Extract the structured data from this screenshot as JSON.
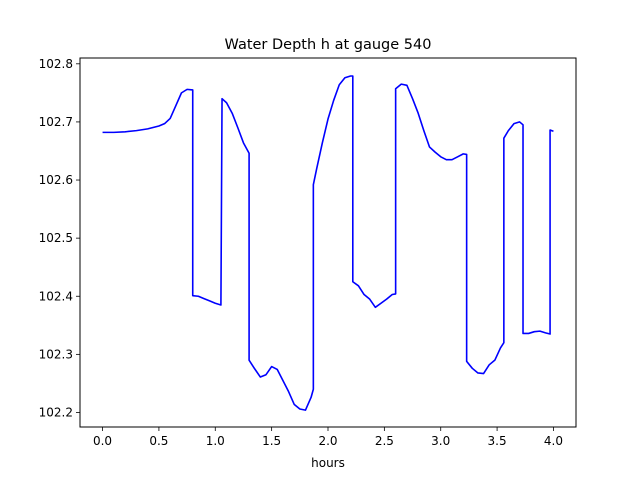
{
  "chart_data": {
    "type": "line",
    "title": "Water Depth h at gauge 540",
    "xlabel": "hours",
    "ylabel": "",
    "xlim": [
      -0.2,
      4.2
    ],
    "ylim": [
      102.175,
      102.81
    ],
    "xticks": [
      0.0,
      0.5,
      1.0,
      1.5,
      2.0,
      2.5,
      3.0,
      3.5,
      4.0
    ],
    "xtick_labels": [
      "0.0",
      "0.5",
      "1.0",
      "1.5",
      "2.0",
      "2.5",
      "3.0",
      "3.5",
      "4.0"
    ],
    "yticks": [
      102.2,
      102.3,
      102.4,
      102.5,
      102.6,
      102.7,
      102.8
    ],
    "ytick_labels": [
      "102.2",
      "102.3",
      "102.4",
      "102.5",
      "102.6",
      "102.7",
      "102.8"
    ],
    "grid": false,
    "legend": "none",
    "series": [
      {
        "color": "#0000ff",
        "x": [
          0.0,
          0.1,
          0.2,
          0.3,
          0.4,
          0.5,
          0.55,
          0.6,
          0.65,
          0.7,
          0.75,
          0.8,
          0.8,
          0.85,
          0.9,
          0.95,
          1.0,
          1.05,
          1.06,
          1.1,
          1.15,
          1.2,
          1.25,
          1.3,
          1.3,
          1.35,
          1.4,
          1.45,
          1.5,
          1.55,
          1.6,
          1.65,
          1.7,
          1.75,
          1.8,
          1.85,
          1.87,
          1.87,
          1.9,
          1.95,
          2.0,
          2.05,
          2.1,
          2.15,
          2.2,
          2.22,
          2.22,
          2.27,
          2.32,
          2.37,
          2.42,
          2.47,
          2.52,
          2.57,
          2.6,
          2.6,
          2.65,
          2.7,
          2.75,
          2.8,
          2.85,
          2.9,
          2.95,
          3.0,
          3.05,
          3.1,
          3.15,
          3.2,
          3.23,
          3.23,
          3.28,
          3.33,
          3.38,
          3.43,
          3.48,
          3.53,
          3.56,
          3.56,
          3.6,
          3.65,
          3.7,
          3.73,
          3.73,
          3.78,
          3.83,
          3.88,
          3.93,
          3.97,
          3.97,
          4.0
        ],
        "y": [
          102.682,
          102.682,
          102.683,
          102.685,
          102.688,
          102.693,
          102.697,
          102.706,
          102.728,
          102.75,
          102.756,
          102.755,
          102.401,
          102.4,
          102.396,
          102.392,
          102.388,
          102.385,
          102.74,
          102.733,
          102.715,
          102.69,
          102.664,
          102.646,
          102.29,
          102.275,
          102.261,
          102.265,
          102.279,
          102.274,
          102.255,
          102.236,
          102.214,
          102.206,
          102.204,
          102.226,
          102.24,
          102.592,
          102.62,
          102.664,
          102.705,
          102.737,
          102.764,
          102.776,
          102.779,
          102.779,
          102.425,
          102.418,
          102.403,
          102.395,
          102.381,
          102.388,
          102.395,
          102.403,
          102.404,
          102.757,
          102.765,
          102.763,
          102.74,
          102.715,
          102.685,
          102.657,
          102.648,
          102.64,
          102.635,
          102.635,
          102.64,
          102.645,
          102.644,
          102.288,
          102.276,
          102.268,
          102.267,
          102.282,
          102.29,
          102.311,
          102.32,
          102.672,
          102.685,
          102.697,
          102.7,
          102.695,
          102.336,
          102.336,
          102.339,
          102.34,
          102.337,
          102.335,
          102.686,
          102.684
        ]
      }
    ]
  }
}
